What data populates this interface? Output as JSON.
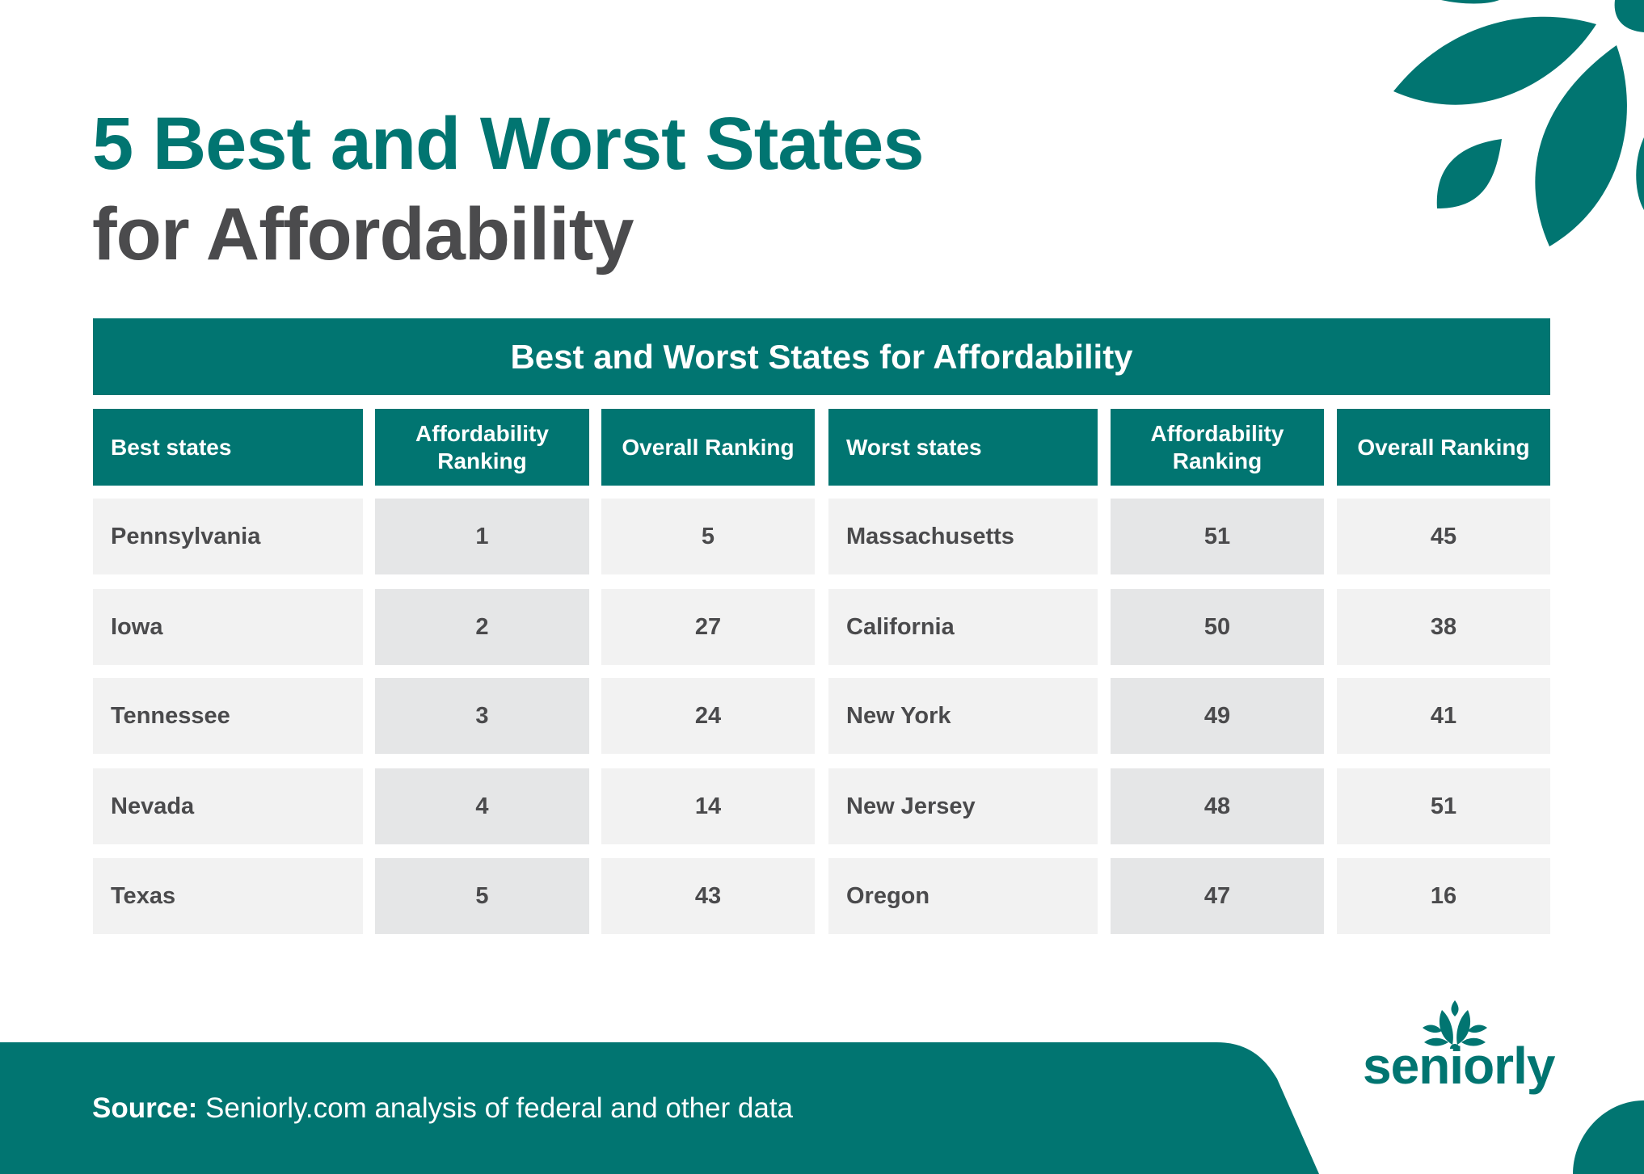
{
  "title": {
    "line1": "5 Best and Worst States",
    "line2": "for Affordability"
  },
  "table": {
    "caption": "Best and Worst States for Affordability",
    "headers": [
      "Best states",
      "Affordability Ranking",
      "Overall Ranking",
      "Worst states",
      "Affordability Ranking",
      "Overall Ranking"
    ],
    "rows": [
      [
        "Pennsylvania",
        "1",
        "5",
        "Massachusetts",
        "51",
        "45"
      ],
      [
        "Iowa",
        "2",
        "27",
        "California",
        "50",
        "38"
      ],
      [
        "Tennessee",
        "3",
        "24",
        "New York",
        "49",
        "41"
      ],
      [
        "Nevada",
        "4",
        "14",
        "New Jersey",
        "48",
        "51"
      ],
      [
        "Texas",
        "5",
        "43",
        "Oregon",
        "47",
        "16"
      ]
    ]
  },
  "footer": {
    "source_label": "Source:",
    "source_text": " Seniorly.com analysis of federal and other data"
  },
  "logo": {
    "text": "seniorly",
    "icon": "lotus-leaves-icon"
  },
  "colors": {
    "brand": "#017571",
    "text": "#4a4a4c",
    "cell": "#f2f2f2",
    "cell_alt": "#e5e6e7"
  }
}
